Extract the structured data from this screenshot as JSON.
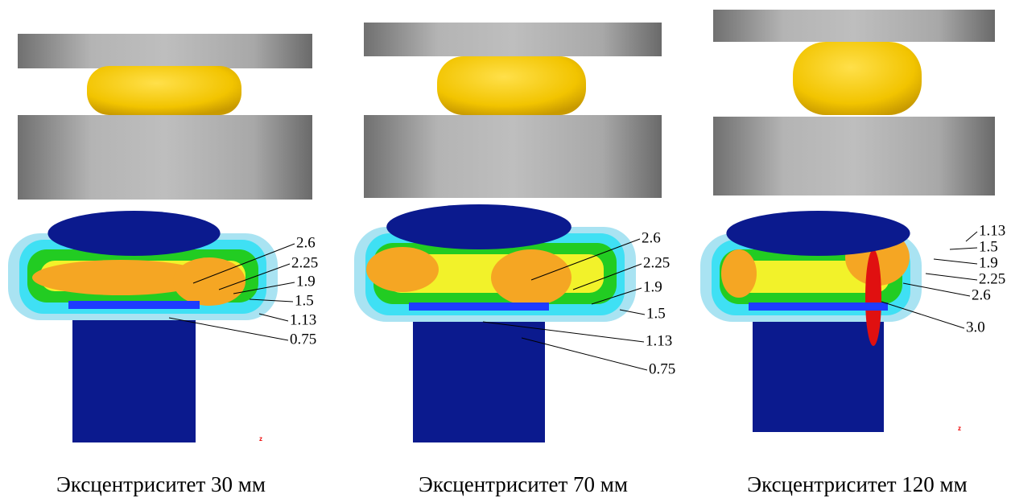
{
  "panels": [
    {
      "caption": "Эксцентриситет 30 мм",
      "contour_labels": [
        "2.6",
        "2.25",
        "1.9",
        "1.5",
        "1.13",
        "0.75"
      ],
      "axis_mark": "z"
    },
    {
      "caption": "Эксцентриситет 70 мм",
      "contour_labels": [
        "2.6",
        "2.25",
        "1.9",
        "1.5",
        "1.13",
        "0.75"
      ]
    },
    {
      "caption": "Эксцентриситет 120 мм",
      "contour_labels": [
        "1.13",
        "1.5",
        "1.9",
        "2.25",
        "2.6",
        "3.0"
      ],
      "axis_mark": "z"
    }
  ]
}
